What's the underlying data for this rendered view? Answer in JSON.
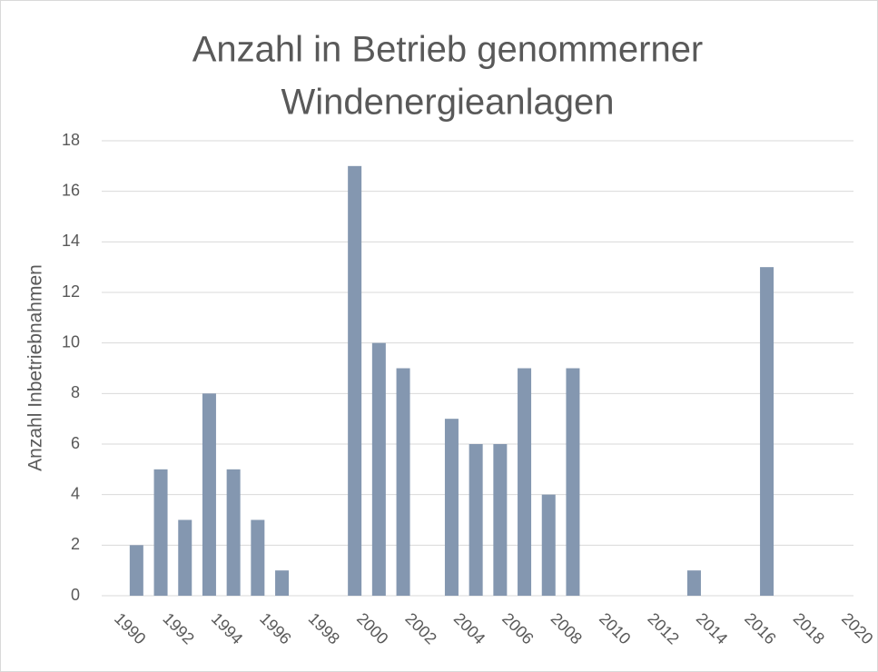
{
  "chart_data": {
    "type": "bar",
    "title": [
      "Anzahl in Betrieb genommerner",
      "Windenergieanlagen"
    ],
    "y_label": "Anzahl Inbetriebnahmen",
    "categories": [
      "1990",
      null,
      "1992",
      null,
      "1994",
      null,
      "1996",
      null,
      "1998",
      null,
      "2000",
      null,
      "2002",
      null,
      "2004",
      null,
      "2006",
      null,
      "2008",
      null,
      "2010",
      null,
      "2012",
      null,
      "2014",
      null,
      "2016",
      null,
      "2018",
      null,
      "2020"
    ],
    "values": [
      2,
      5,
      3,
      8,
      5,
      3,
      1,
      0,
      0,
      17,
      10,
      9,
      0,
      7,
      6,
      6,
      9,
      4,
      9,
      0,
      0,
      0,
      0,
      1,
      0,
      0,
      13,
      0,
      0,
      0,
      0
    ],
    "color": "#8497b0",
    "ylim": [
      0,
      18
    ],
    "yticks": [
      0,
      2,
      4,
      6,
      8,
      10,
      12,
      14,
      16,
      18
    ],
    "grid": true
  }
}
